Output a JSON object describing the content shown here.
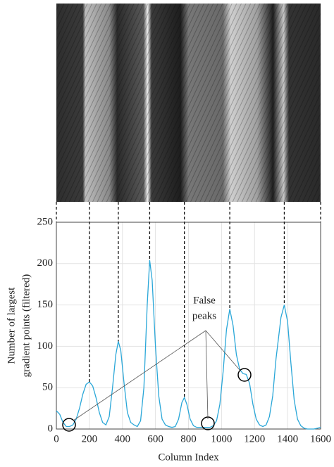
{
  "chart_data": {
    "type": "line",
    "xlabel": "Column Index",
    "ylabel": [
      "Number of largest",
      "gradient points (filtered)"
    ],
    "annotation": [
      "False",
      "peaks"
    ],
    "x": [
      0,
      20,
      40,
      60,
      80,
      100,
      120,
      140,
      160,
      180,
      200,
      220,
      240,
      260,
      280,
      300,
      320,
      340,
      360,
      375,
      390,
      410,
      430,
      450,
      470,
      490,
      510,
      530,
      550,
      565,
      580,
      600,
      620,
      640,
      660,
      680,
      700,
      720,
      740,
      760,
      775,
      790,
      810,
      830,
      850,
      870,
      890,
      910,
      930,
      950,
      970,
      990,
      1010,
      1030,
      1050,
      1070,
      1090,
      1110,
      1130,
      1150,
      1170,
      1190,
      1210,
      1230,
      1250,
      1270,
      1290,
      1310,
      1330,
      1360,
      1380,
      1400,
      1420,
      1440,
      1460,
      1480,
      1500,
      1520,
      1560,
      1580,
      1600
    ],
    "series": [
      {
        "color": "#2aa7d8",
        "values": [
          22,
          18,
          8,
          3,
          3,
          5,
          12,
          25,
          42,
          54,
          57,
          52,
          38,
          20,
          8,
          5,
          15,
          50,
          90,
          106,
          95,
          55,
          20,
          8,
          5,
          3,
          10,
          50,
          150,
          204,
          180,
          100,
          40,
          12,
          5,
          3,
          2,
          3,
          12,
          32,
          38,
          30,
          12,
          4,
          2,
          2,
          2,
          2,
          2,
          4,
          10,
          30,
          70,
          120,
          145,
          125,
          90,
          72,
          67,
          66,
          55,
          30,
          12,
          5,
          3,
          5,
          15,
          40,
          85,
          135,
          150,
          130,
          80,
          35,
          12,
          4,
          1,
          0,
          0,
          1,
          2
        ]
      }
    ],
    "xlim": [
      0,
      1600
    ],
    "ylim": [
      0,
      250
    ],
    "xticks": [
      0,
      200,
      400,
      600,
      800,
      1000,
      1200,
      1400,
      1600
    ],
    "yticks": [
      0,
      50,
      100,
      150,
      200,
      250
    ],
    "grid": true
  }
}
